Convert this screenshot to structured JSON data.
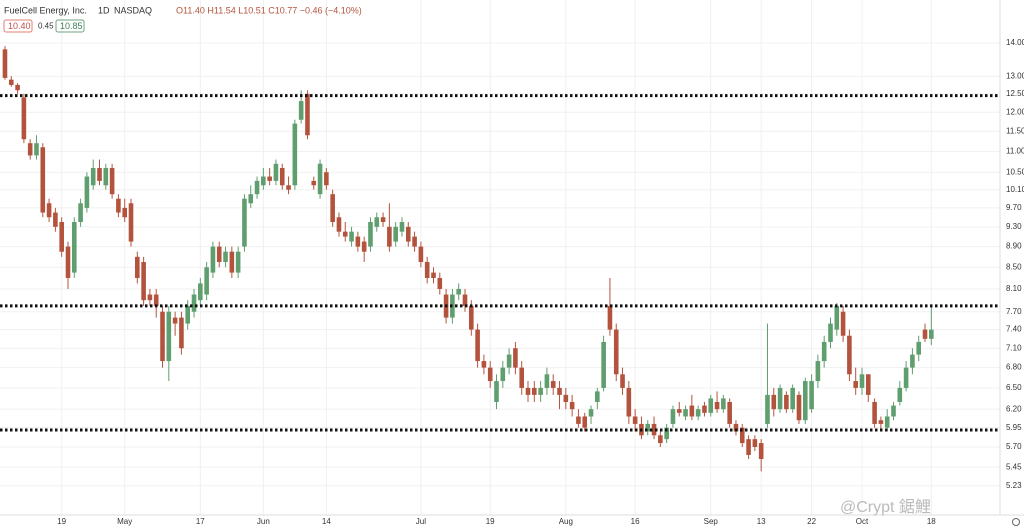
{
  "chart_data": {
    "type": "candlestick",
    "title": "FuelCell Energy, Inc.",
    "interval": "1D",
    "exchange": "NASDAQ",
    "ohlc_label": "O11.40 H11.54 L10.51 C10.77 −0.46 (−4.10%)",
    "bid": "10.40",
    "spread": "0.45",
    "ask": "10.85",
    "watermark": "@Crypt 鋸鯉",
    "up_color": "#5f9e6e",
    "down_color": "#b4533d",
    "level_color": "#111111",
    "log_scale": true,
    "grid": true,
    "ylim": [
      4.9,
      15.4
    ],
    "yticks": [
      {
        "value": 14,
        "label": "14.00"
      },
      {
        "value": 13,
        "label": "13.00"
      },
      {
        "value": 12.5,
        "label": "12.50"
      },
      {
        "value": 12,
        "label": "12.00"
      },
      {
        "value": 11.5,
        "label": "11.50"
      },
      {
        "value": 11,
        "label": "11.00"
      },
      {
        "value": 10.5,
        "label": "10.50"
      },
      {
        "value": 10.1,
        "label": "10.10"
      },
      {
        "value": 9.7,
        "label": "9.70"
      },
      {
        "value": 9.3,
        "label": "9.30"
      },
      {
        "value": 8.9,
        "label": "8.90"
      },
      {
        "value": 8.5,
        "label": "8.50"
      },
      {
        "value": 8.1,
        "label": "8.10"
      },
      {
        "value": 7.7,
        "label": "7.70"
      },
      {
        "value": 7.4,
        "label": "7.40"
      },
      {
        "value": 7.1,
        "label": "7.10"
      },
      {
        "value": 6.8,
        "label": "6.80"
      },
      {
        "value": 6.5,
        "label": "6.50"
      },
      {
        "value": 6.2,
        "label": "6.20"
      },
      {
        "value": 5.95,
        "label": "5.95"
      },
      {
        "value": 5.7,
        "label": "5.70"
      },
      {
        "value": 5.45,
        "label": "5.45"
      },
      {
        "value": 5.23,
        "label": "5.23"
      }
    ],
    "xlim": [
      -0.79,
      157.9
    ],
    "xticks": [
      {
        "value": 9,
        "label": "19"
      },
      {
        "value": 19,
        "label": "May"
      },
      {
        "value": 31,
        "label": "17"
      },
      {
        "value": 41,
        "label": "Jun"
      },
      {
        "value": 51,
        "label": "14"
      },
      {
        "value": 66,
        "label": "Jul"
      },
      {
        "value": 77,
        "label": "19"
      },
      {
        "value": 89,
        "label": "Aug"
      },
      {
        "value": 100,
        "label": "16"
      },
      {
        "value": 112,
        "label": "Sep"
      },
      {
        "value": 120,
        "label": "13"
      },
      {
        "value": 128,
        "label": "22"
      },
      {
        "value": 136,
        "label": "Oct"
      },
      {
        "value": 147,
        "label": "18"
      }
    ],
    "levels": [
      12.45,
      7.8,
      5.92
    ],
    "candles": [
      [
        13.8,
        13.9,
        12.9,
        12.95
      ],
      [
        12.9,
        13.0,
        12.7,
        12.75
      ],
      [
        12.75,
        12.8,
        12.5,
        12.6
      ],
      [
        12.4,
        12.5,
        11.2,
        11.3
      ],
      [
        11.2,
        11.3,
        10.8,
        10.9
      ],
      [
        10.9,
        11.4,
        10.8,
        11.2
      ],
      [
        11.1,
        11.2,
        9.5,
        9.6
      ],
      [
        9.8,
        9.9,
        9.4,
        9.5
      ],
      [
        9.6,
        9.7,
        9.2,
        9.3
      ],
      [
        9.4,
        9.5,
        8.7,
        8.8
      ],
      [
        8.9,
        9.0,
        8.1,
        8.3
      ],
      [
        8.4,
        9.5,
        8.3,
        9.4
      ],
      [
        9.4,
        9.9,
        9.3,
        9.8
      ],
      [
        9.7,
        10.5,
        9.6,
        10.4
      ],
      [
        10.2,
        10.8,
        10.1,
        10.6
      ],
      [
        10.6,
        10.8,
        10.2,
        10.3
      ],
      [
        10.2,
        10.7,
        10.1,
        10.6
      ],
      [
        10.6,
        10.7,
        9.9,
        10.0
      ],
      [
        9.9,
        10.0,
        9.5,
        9.6
      ],
      [
        9.7,
        9.9,
        9.4,
        9.5
      ],
      [
        9.8,
        9.9,
        8.9,
        9.0
      ],
      [
        8.7,
        8.8,
        8.2,
        8.3
      ],
      [
        8.6,
        8.7,
        7.8,
        7.9
      ],
      [
        8.0,
        8.1,
        7.8,
        7.9
      ],
      [
        8.0,
        8.1,
        7.6,
        7.8
      ],
      [
        7.7,
        7.8,
        6.8,
        6.9
      ],
      [
        6.9,
        7.8,
        6.6,
        7.7
      ],
      [
        7.6,
        7.7,
        7.3,
        7.5
      ],
      [
        7.6,
        7.7,
        7.0,
        7.1
      ],
      [
        7.5,
        7.9,
        7.4,
        7.8
      ],
      [
        7.7,
        8.1,
        7.6,
        8.0
      ],
      [
        7.9,
        8.3,
        7.8,
        8.2
      ],
      [
        8.0,
        8.6,
        7.9,
        8.5
      ],
      [
        8.4,
        9.0,
        8.3,
        8.9
      ],
      [
        8.9,
        9.0,
        8.5,
        8.6
      ],
      [
        8.6,
        8.9,
        8.5,
        8.8
      ],
      [
        8.8,
        8.9,
        8.3,
        8.4
      ],
      [
        8.4,
        8.9,
        8.3,
        8.8
      ],
      [
        8.9,
        10.0,
        8.8,
        9.9
      ],
      [
        9.8,
        10.2,
        9.7,
        10.0
      ],
      [
        10.0,
        10.4,
        9.9,
        10.3
      ],
      [
        10.2,
        10.6,
        10.1,
        10.4
      ],
      [
        10.4,
        10.6,
        10.2,
        10.3
      ],
      [
        10.3,
        10.8,
        10.2,
        10.7
      ],
      [
        10.6,
        10.7,
        10.1,
        10.2
      ],
      [
        10.2,
        10.4,
        10.0,
        10.1
      ],
      [
        10.2,
        11.8,
        10.1,
        11.7
      ],
      [
        11.8,
        12.6,
        11.7,
        12.3
      ],
      [
        12.5,
        12.6,
        11.3,
        11.4
      ],
      [
        10.3,
        10.4,
        10.1,
        10.2
      ],
      [
        10.0,
        10.8,
        9.9,
        10.7
      ],
      [
        10.5,
        10.6,
        10.1,
        10.2
      ],
      [
        10.0,
        10.1,
        9.3,
        9.4
      ],
      [
        9.5,
        9.6,
        9.1,
        9.2
      ],
      [
        9.2,
        9.4,
        9.0,
        9.1
      ],
      [
        9.0,
        9.3,
        8.9,
        9.2
      ],
      [
        9.1,
        9.2,
        8.8,
        8.9
      ],
      [
        9.0,
        9.1,
        8.6,
        8.8
      ],
      [
        8.9,
        9.5,
        8.8,
        9.4
      ],
      [
        9.3,
        9.6,
        9.2,
        9.5
      ],
      [
        9.5,
        9.6,
        9.3,
        9.4
      ],
      [
        9.3,
        9.8,
        8.8,
        8.9
      ],
      [
        9.0,
        9.4,
        8.9,
        9.3
      ],
      [
        9.2,
        9.5,
        9.1,
        9.4
      ],
      [
        9.3,
        9.4,
        8.9,
        9.0
      ],
      [
        9.1,
        9.2,
        8.8,
        8.9
      ],
      [
        8.9,
        9.0,
        8.5,
        8.6
      ],
      [
        8.6,
        8.7,
        8.2,
        8.3
      ],
      [
        8.4,
        8.5,
        8.2,
        8.3
      ],
      [
        8.3,
        8.4,
        8.0,
        8.1
      ],
      [
        8.0,
        8.1,
        7.5,
        7.6
      ],
      [
        7.6,
        8.1,
        7.5,
        8.0
      ],
      [
        8.0,
        8.2,
        7.9,
        8.1
      ],
      [
        8.0,
        8.1,
        7.7,
        7.8
      ],
      [
        7.8,
        7.9,
        7.3,
        7.4
      ],
      [
        7.4,
        7.5,
        6.8,
        6.9
      ],
      [
        6.9,
        7.0,
        6.7,
        6.8
      ],
      [
        6.8,
        6.9,
        6.5,
        6.6
      ],
      [
        6.3,
        6.7,
        6.2,
        6.6
      ],
      [
        6.6,
        6.9,
        6.5,
        6.8
      ],
      [
        6.8,
        7.1,
        6.7,
        7.0
      ],
      [
        7.1,
        7.2,
        6.7,
        6.8
      ],
      [
        6.8,
        6.9,
        6.4,
        6.5
      ],
      [
        6.5,
        6.6,
        6.3,
        6.4
      ],
      [
        6.5,
        6.6,
        6.3,
        6.4
      ],
      [
        6.4,
        6.6,
        6.3,
        6.5
      ],
      [
        6.5,
        6.8,
        6.4,
        6.7
      ],
      [
        6.6,
        6.7,
        6.4,
        6.5
      ],
      [
        6.5,
        6.6,
        6.2,
        6.4
      ],
      [
        6.4,
        6.5,
        6.2,
        6.3
      ],
      [
        6.3,
        6.4,
        6.1,
        6.2
      ],
      [
        6.1,
        6.2,
        5.95,
        6.0
      ],
      [
        6.1,
        6.15,
        5.9,
        5.95
      ],
      [
        6.1,
        6.25,
        6.0,
        6.2
      ],
      [
        6.3,
        6.5,
        6.2,
        6.45
      ],
      [
        6.5,
        7.3,
        6.45,
        7.2
      ],
      [
        7.8,
        8.3,
        7.3,
        7.4
      ],
      [
        7.4,
        7.5,
        6.6,
        6.7
      ],
      [
        6.7,
        6.8,
        6.4,
        6.5
      ],
      [
        6.5,
        6.6,
        6.0,
        6.1
      ],
      [
        6.1,
        6.2,
        5.9,
        6.0
      ],
      [
        6.0,
        6.1,
        5.8,
        5.85
      ],
      [
        5.9,
        6.05,
        5.85,
        6.0
      ],
      [
        6.0,
        6.1,
        5.8,
        5.85
      ],
      [
        5.85,
        5.9,
        5.7,
        5.75
      ],
      [
        5.8,
        6.0,
        5.75,
        5.95
      ],
      [
        6.0,
        6.25,
        5.95,
        6.2
      ],
      [
        6.2,
        6.3,
        6.1,
        6.15
      ],
      [
        6.1,
        6.25,
        6.05,
        6.2
      ],
      [
        6.25,
        6.4,
        6.05,
        6.1
      ],
      [
        6.1,
        6.25,
        6.05,
        6.2
      ],
      [
        6.25,
        6.3,
        6.1,
        6.15
      ],
      [
        6.15,
        6.4,
        6.1,
        6.35
      ],
      [
        6.3,
        6.45,
        6.15,
        6.2
      ],
      [
        6.2,
        6.4,
        6.15,
        6.35
      ],
      [
        6.3,
        6.35,
        5.95,
        6.0
      ],
      [
        6.0,
        6.05,
        5.85,
        5.9
      ],
      [
        5.95,
        6.0,
        5.7,
        5.75
      ],
      [
        5.8,
        5.85,
        5.55,
        5.6
      ],
      [
        5.8,
        5.85,
        5.65,
        5.7
      ],
      [
        5.75,
        5.8,
        5.4,
        5.55
      ],
      [
        6.0,
        7.5,
        5.95,
        6.4
      ],
      [
        6.4,
        6.5,
        6.1,
        6.2
      ],
      [
        6.2,
        6.55,
        6.15,
        6.5
      ],
      [
        6.4,
        6.45,
        6.15,
        6.2
      ],
      [
        6.2,
        6.55,
        6.15,
        6.5
      ],
      [
        6.4,
        6.45,
        6.0,
        6.05
      ],
      [
        6.05,
        6.65,
        6.0,
        6.6
      ],
      [
        6.2,
        6.7,
        6.15,
        6.6
      ],
      [
        6.6,
        7.0,
        6.5,
        6.9
      ],
      [
        6.9,
        7.3,
        6.8,
        7.2
      ],
      [
        7.2,
        7.6,
        7.1,
        7.5
      ],
      [
        7.4,
        7.85,
        7.3,
        7.8
      ],
      [
        7.7,
        7.8,
        7.2,
        7.3
      ],
      [
        7.3,
        7.4,
        6.6,
        6.7
      ],
      [
        6.6,
        6.8,
        6.4,
        6.5
      ],
      [
        6.5,
        6.8,
        6.4,
        6.7
      ],
      [
        6.7,
        6.7,
        6.3,
        6.4
      ],
      [
        6.3,
        6.35,
        5.95,
        6.0
      ],
      [
        6.05,
        6.1,
        5.9,
        6.0
      ],
      [
        5.95,
        6.2,
        5.9,
        6.1
      ],
      [
        6.1,
        6.3,
        6.05,
        6.25
      ],
      [
        6.3,
        6.6,
        6.25,
        6.5
      ],
      [
        6.5,
        6.9,
        6.45,
        6.8
      ],
      [
        6.8,
        7.1,
        6.7,
        7.0
      ],
      [
        7.0,
        7.3,
        6.9,
        7.2
      ],
      [
        7.4,
        7.5,
        7.2,
        7.25
      ],
      [
        7.25,
        7.8,
        7.15,
        7.4
      ]
    ]
  }
}
